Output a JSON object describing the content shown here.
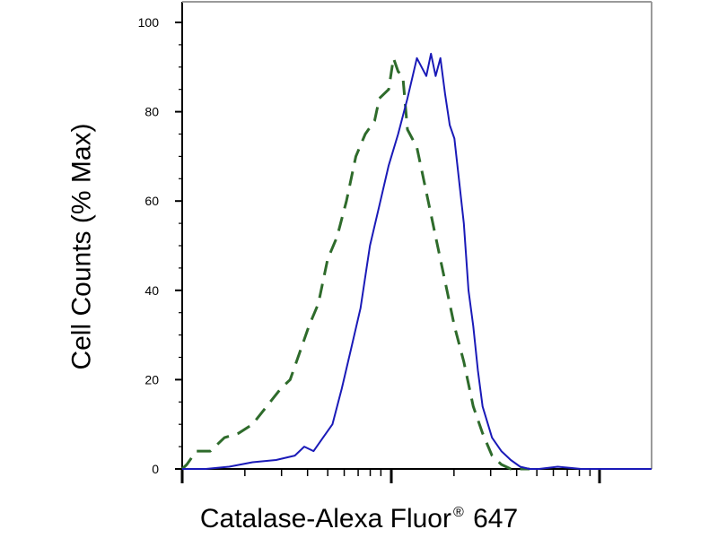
{
  "chart_data": {
    "type": "line",
    "xlabel_main": "Catalase-Alexa Fluor",
    "xlabel_reg": "®",
    "xlabel_tail": " 647",
    "ylabel": "Cell Counts (% Max)",
    "x_scale": "log",
    "xlim": [
      0,
      1
    ],
    "ylim": [
      0,
      100
    ],
    "yticks": [
      0,
      20,
      40,
      60,
      80,
      100
    ],
    "ytick_labels": [
      "0",
      "20",
      "40",
      "60",
      "80",
      "100"
    ],
    "grid": false,
    "series": [
      {
        "style": "dashed",
        "color": "#2e6b2b",
        "x": [
          0.0,
          0.01,
          0.03,
          0.06,
          0.09,
          0.12,
          0.15,
          0.18,
          0.21,
          0.23,
          0.25,
          0.27,
          0.29,
          0.31,
          0.33,
          0.35,
          0.37,
          0.39,
          0.41,
          0.42,
          0.44,
          0.45,
          0.46,
          0.47,
          0.48,
          0.49,
          0.5,
          0.52,
          0.54,
          0.56,
          0.58,
          0.6,
          0.62,
          0.64,
          0.66,
          0.68,
          0.7,
          0.72,
          0.74
        ],
        "values": [
          0,
          1,
          4,
          4,
          7,
          8,
          10,
          14,
          18,
          20,
          26,
          32,
          37,
          47,
          52,
          60,
          70,
          75,
          78,
          83,
          85,
          92,
          89,
          88,
          76,
          74,
          72,
          62,
          52,
          42,
          32,
          24,
          14,
          8,
          3,
          1,
          0,
          0,
          0
        ]
      },
      {
        "style": "solid",
        "color": "#1a1ab8",
        "x": [
          0.0,
          0.05,
          0.1,
          0.15,
          0.2,
          0.24,
          0.26,
          0.28,
          0.3,
          0.32,
          0.34,
          0.36,
          0.38,
          0.4,
          0.42,
          0.44,
          0.46,
          0.48,
          0.5,
          0.52,
          0.53,
          0.54,
          0.55,
          0.56,
          0.57,
          0.58,
          0.6,
          0.61,
          0.62,
          0.63,
          0.64,
          0.66,
          0.68,
          0.7,
          0.72,
          0.74,
          0.76,
          0.8,
          0.85,
          0.9,
          1.0
        ],
        "values": [
          0,
          0,
          0.5,
          1.5,
          2,
          3,
          5,
          4,
          7,
          10,
          18,
          27,
          36,
          50,
          59,
          68,
          75,
          83,
          92,
          88,
          93,
          88,
          92,
          84,
          77,
          74,
          55,
          40,
          32,
          22,
          14,
          7,
          4,
          2,
          0.5,
          0,
          0,
          0.5,
          0,
          0,
          0
        ]
      }
    ]
  }
}
